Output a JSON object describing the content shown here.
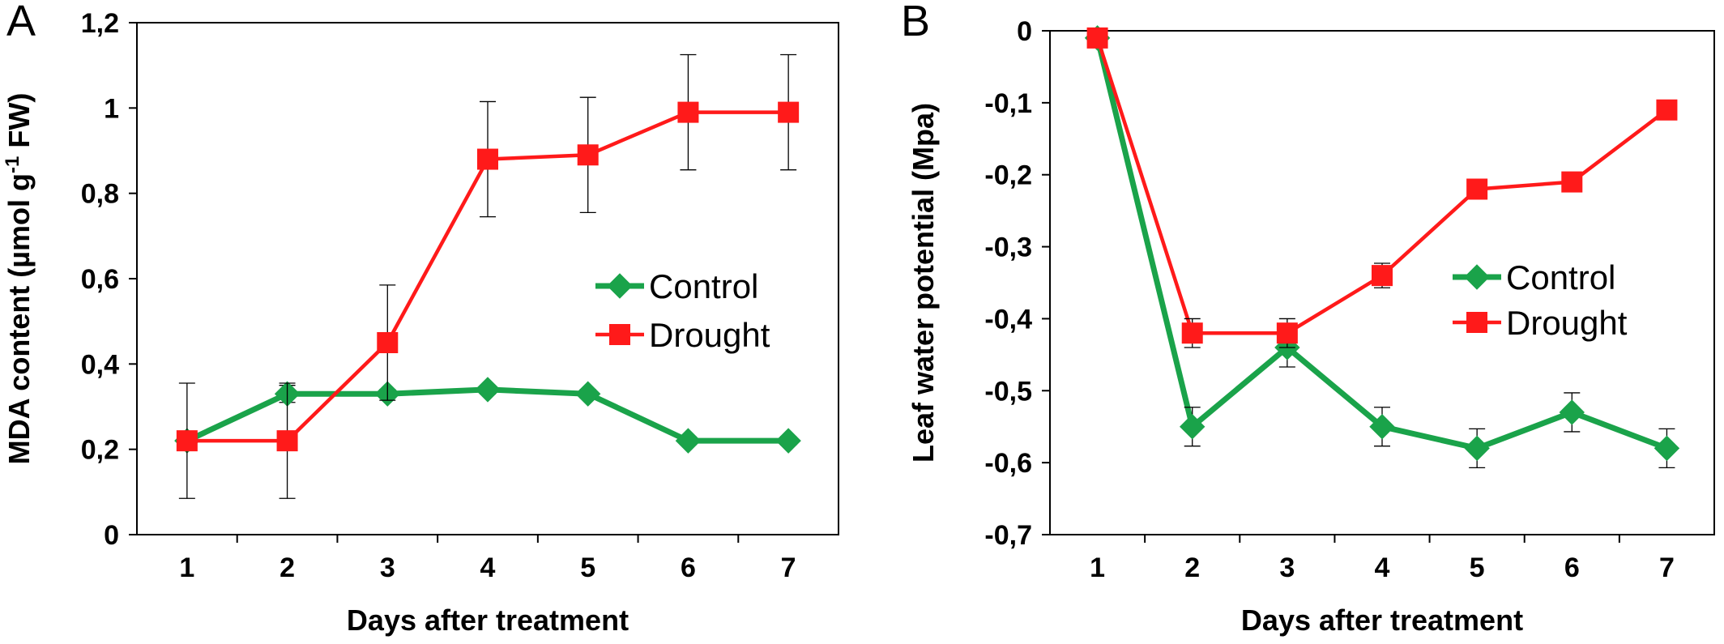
{
  "chart_data": [
    {
      "panel_label": "A",
      "type": "line",
      "xlabel": "Days after treatment",
      "ylabel": "MDA content (µmol g",
      "ylabel_sup": "-1",
      "ylabel_end": " FW)",
      "x": [
        1,
        2,
        3,
        4,
        5,
        6,
        7
      ],
      "xticks": [
        "1",
        "2",
        "3",
        "4",
        "5",
        "6",
        "7"
      ],
      "ylim": [
        0,
        1.2
      ],
      "yticks": [
        0,
        0.2,
        0.4,
        0.6,
        0.8,
        1.0,
        1.2
      ],
      "ytick_labels": [
        "0",
        "0,2",
        "0,4",
        "0,6",
        "0,8",
        "1",
        "1,2"
      ],
      "legend_position": "right-middle",
      "grid": false,
      "series": [
        {
          "name": "Control",
          "color": "#1aa34a",
          "marker": "diamond",
          "values": [
            0.22,
            0.33,
            0.33,
            0.34,
            0.33,
            0.22,
            0.22
          ],
          "errors": [
            0.02,
            0.02,
            0.01,
            0.01,
            0.01,
            0.01,
            0.01
          ]
        },
        {
          "name": "Drought",
          "color": "#ff1a1a",
          "marker": "square",
          "values": [
            0.22,
            0.22,
            0.45,
            0.88,
            0.89,
            0.99,
            0.99
          ],
          "errors": [
            0.135,
            0.135,
            0.135,
            0.135,
            0.135,
            0.135,
            0.135
          ]
        }
      ]
    },
    {
      "panel_label": "B",
      "type": "line",
      "xlabel": "Days after treatment",
      "ylabel": "Leaf water potential (Mpa)",
      "x": [
        1,
        2,
        3,
        4,
        5,
        6,
        7
      ],
      "xticks": [
        "1",
        "2",
        "3",
        "4",
        "5",
        "6",
        "7"
      ],
      "ylim": [
        -0.7,
        0
      ],
      "yticks": [
        0,
        -0.1,
        -0.2,
        -0.3,
        -0.4,
        -0.5,
        -0.6,
        -0.7
      ],
      "ytick_labels": [
        "0",
        "-0,1",
        "-0,2",
        "-0,3",
        "-0,4",
        "-0,5",
        "-0,6",
        "-0,7"
      ],
      "legend_position": "right-middle",
      "grid": false,
      "series": [
        {
          "name": "Control",
          "color": "#1aa34a",
          "marker": "diamond",
          "values": [
            -0.01,
            -0.55,
            -0.44,
            -0.55,
            -0.58,
            -0.53,
            -0.58
          ],
          "errors": [
            0.005,
            0.027,
            0.027,
            0.027,
            0.027,
            0.027,
            0.027
          ]
        },
        {
          "name": "Drought",
          "color": "#ff1a1a",
          "marker": "square",
          "values": [
            -0.01,
            -0.42,
            -0.42,
            -0.34,
            -0.22,
            -0.21,
            -0.11
          ],
          "errors": [
            0.005,
            0.02,
            0.02,
            0.017,
            0.005,
            0.005,
            0.005
          ]
        }
      ]
    }
  ]
}
